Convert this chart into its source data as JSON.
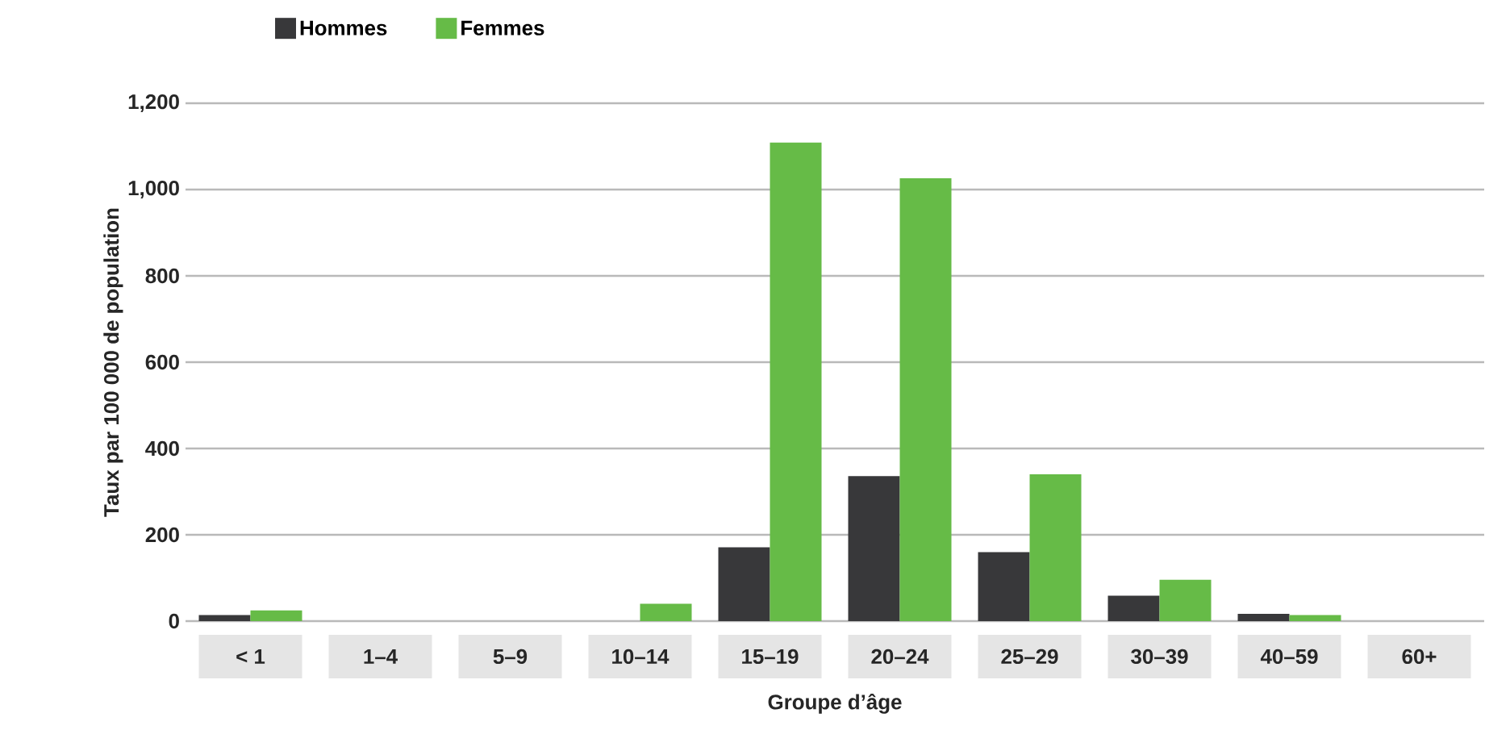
{
  "chart_data": {
    "type": "bar",
    "xlabel": "Groupe d’âge",
    "ylabel": "Taux par 100 000 de population",
    "categories": [
      "< 1",
      "1–4",
      "5–9",
      "10–14",
      "15–19",
      "20–24",
      "25–29",
      "30–39",
      "40–59",
      "60+"
    ],
    "series": [
      {
        "name": "Hommes",
        "color": "#38383a",
        "values": [
          14,
          0,
          0,
          0,
          171,
          336,
          160,
          59,
          17,
          0
        ]
      },
      {
        "name": "Femmes",
        "color": "#66bb47",
        "values": [
          25,
          0,
          0,
          40,
          1109,
          1026,
          340,
          96,
          14,
          0
        ]
      }
    ],
    "ylim": [
      0,
      1200
    ],
    "yticks": [
      0,
      200,
      400,
      600,
      800,
      {
        "value": 1000,
        "label": "1,000"
      },
      {
        "value": 1200,
        "label": "1,200"
      }
    ],
    "grid": "y",
    "legend": "top left"
  }
}
